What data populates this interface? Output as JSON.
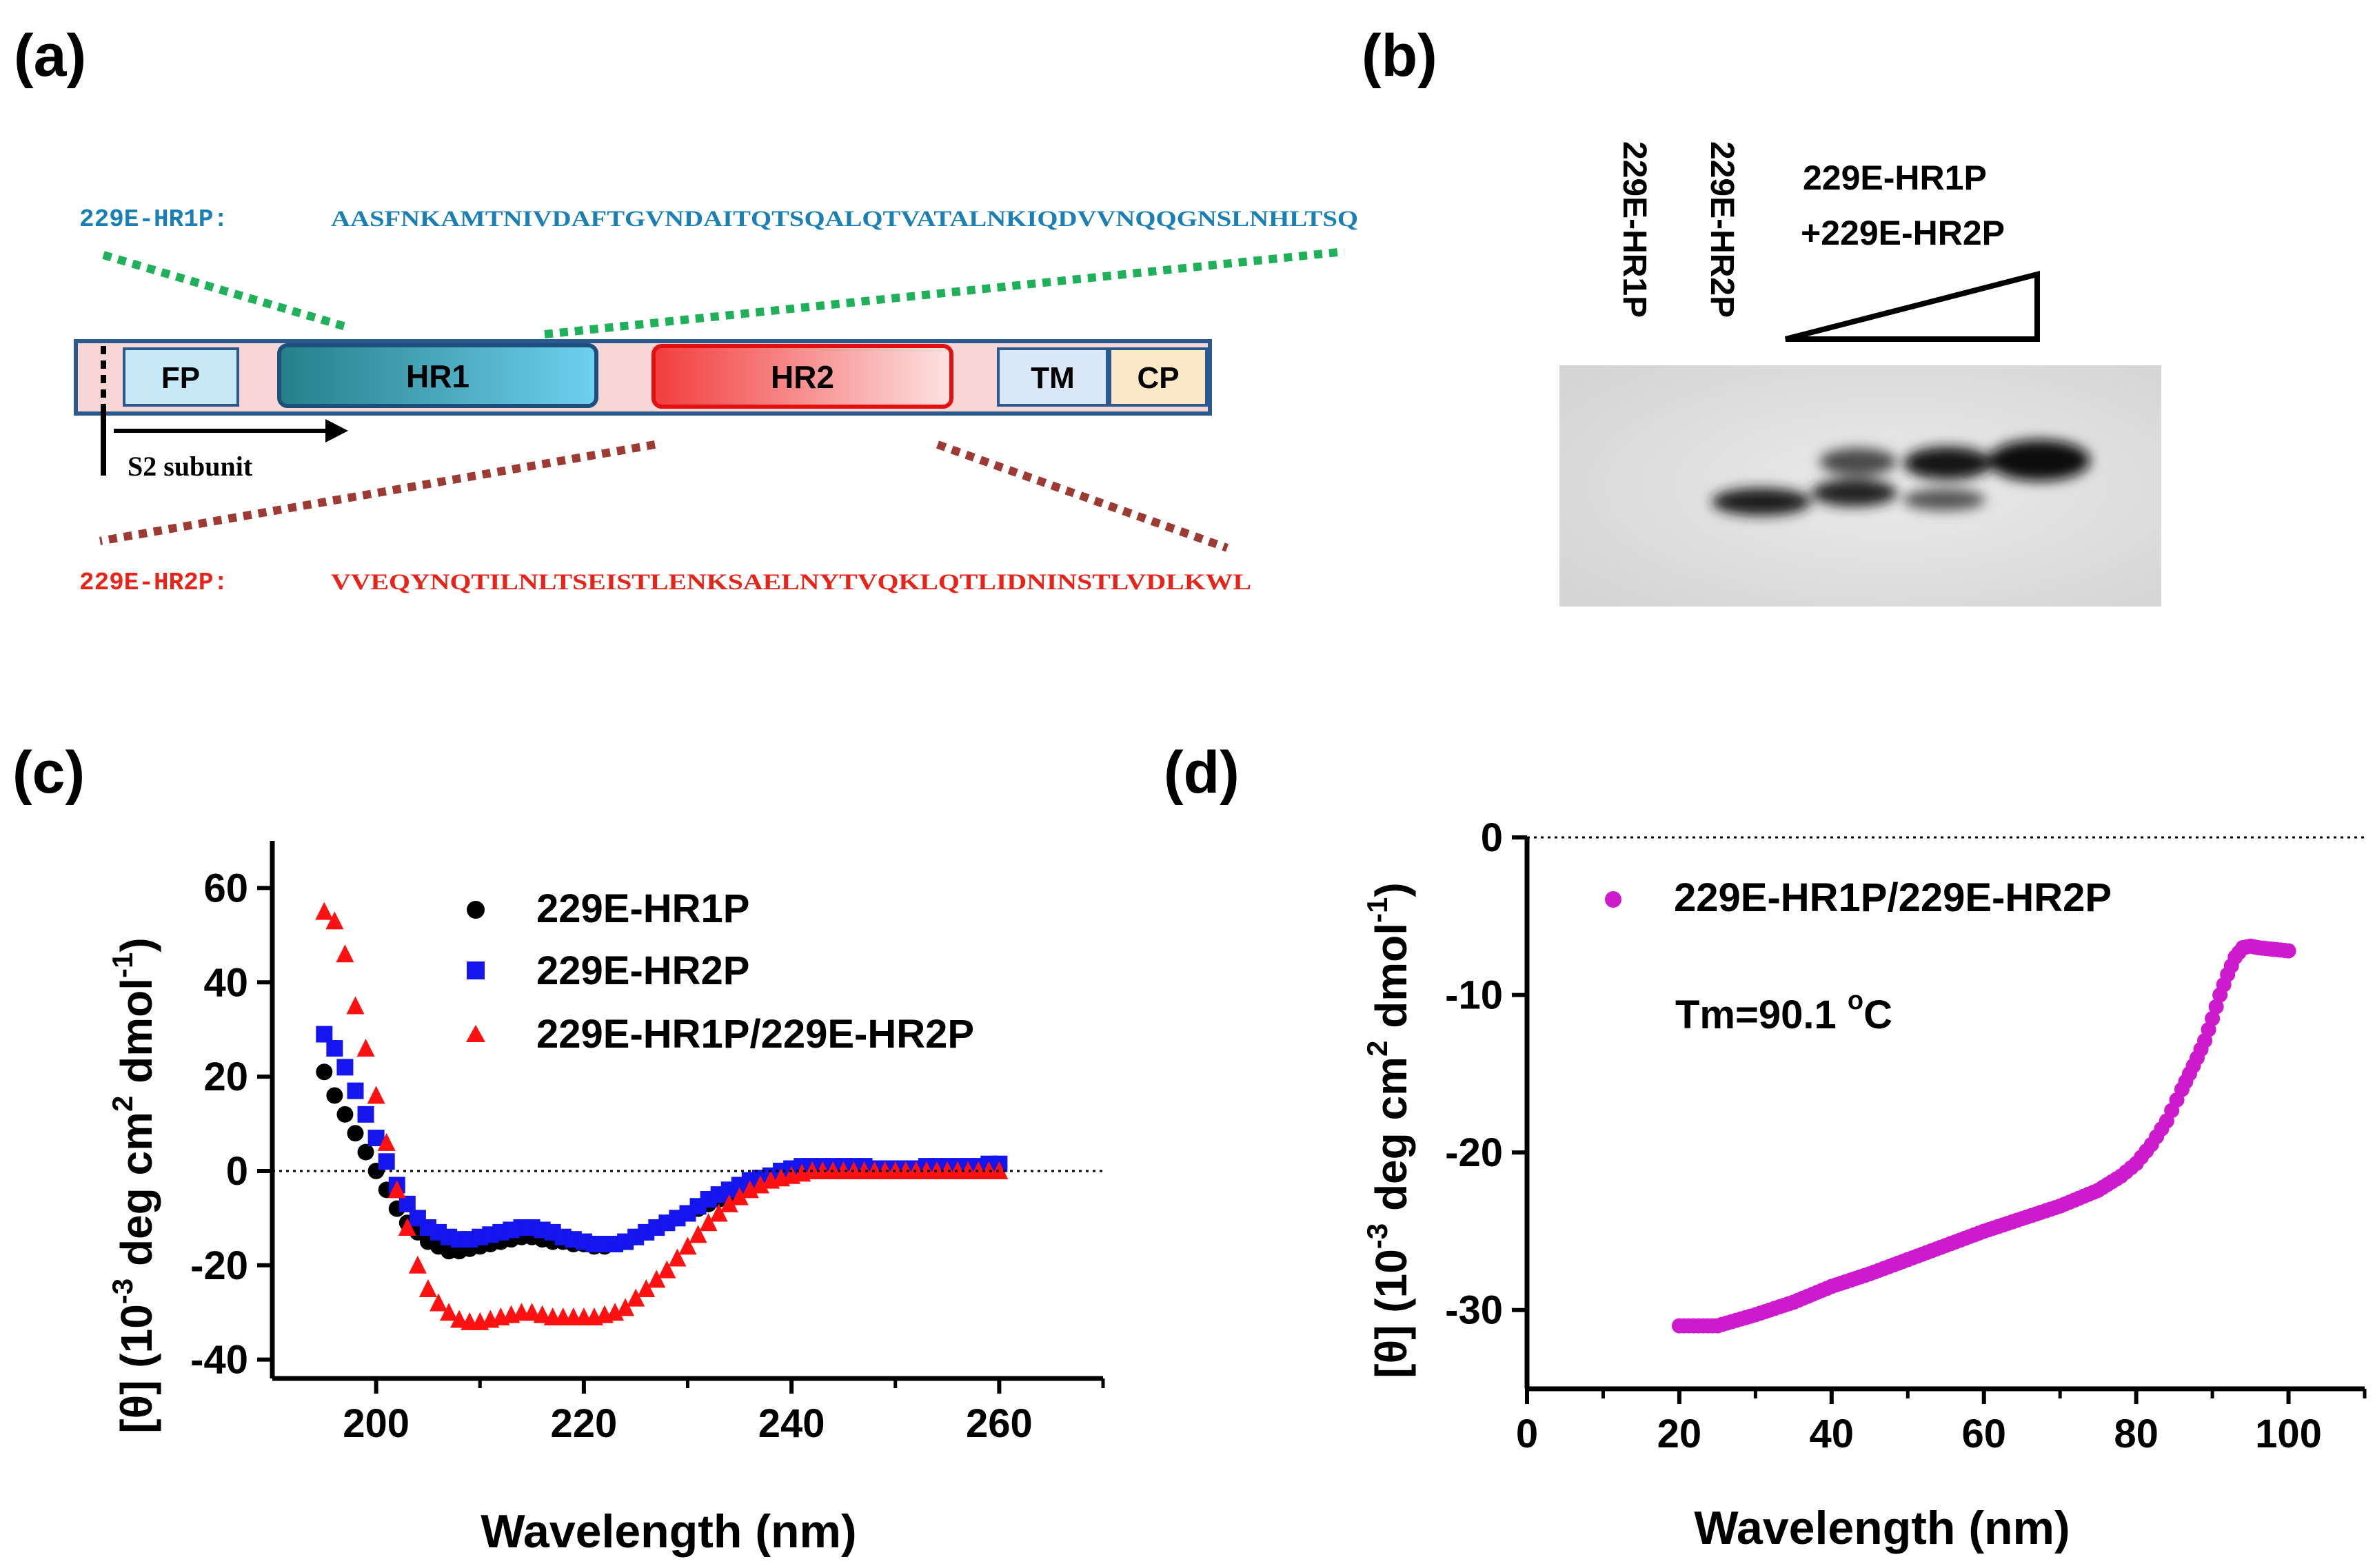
{
  "panels": {
    "a": {
      "label": "(a)",
      "hr1_seq_label": "229E-HR1P:",
      "hr1_seq": "AASFNKAMTNIVDAFTGVNDAITQTSQALQTVATALNKIQDVVNQQGNSLNHLTSQ",
      "hr2_seq_label": "229E-HR2P:",
      "hr2_seq": "VVEQYNQTILNLTSEISTLENKSAELNYTVQKLQTLIDNINSTLVDLKWL",
      "domains": {
        "fp": "FP",
        "hr1": "HR1",
        "hr2": "HR2",
        "tm": "TM",
        "cp": "CP"
      },
      "s2_label": "S2 subunit",
      "colors": {
        "hr1": "#1a7fb5",
        "hr2": "#e8231a",
        "hr1_link": "#1fb05a",
        "hr2_link": "#9c3a33"
      }
    },
    "b": {
      "label": "(b)",
      "lane1": "229E-HR1P",
      "lane2": "229E-HR2P",
      "mix_line1": "229E-HR1P",
      "mix_line2": "+229E-HR2P"
    },
    "c": {
      "label": "(c)"
    },
    "d": {
      "label": "(d)"
    }
  },
  "chart_data": [
    {
      "type": "scatter",
      "panel": "c",
      "xlabel": "Wavelength (nm)",
      "ylabel_prefix": "[θ] (10",
      "ylabel_exp1": "-3",
      "ylabel_mid": " deg cm",
      "ylabel_exp2": "2",
      "ylabel_mid2": " dmol",
      "ylabel_exp3": "-1",
      "ylabel_suffix": ")",
      "xlim": [
        190,
        270
      ],
      "ylim": [
        -44,
        70
      ],
      "xticks": [
        200,
        220,
        240,
        260
      ],
      "yticks": [
        60,
        40,
        20,
        0,
        -20,
        -40
      ],
      "zero_line": true,
      "series": [
        {
          "name": "229E-HR1P",
          "marker": "circle",
          "color": "#000000",
          "x": [
            195,
            196,
            197,
            198,
            199,
            200,
            201,
            202,
            203,
            204,
            205,
            206,
            207,
            208,
            209,
            210,
            211,
            212,
            213,
            214,
            215,
            216,
            217,
            218,
            219,
            220,
            221,
            222,
            223,
            224,
            225,
            226,
            227,
            228,
            229,
            230,
            231,
            232,
            233,
            234,
            235,
            236,
            237,
            238,
            239,
            240,
            241,
            242,
            243,
            244,
            245,
            246,
            247,
            248,
            249,
            250,
            251,
            252,
            253,
            254,
            255,
            256,
            257,
            258,
            259,
            260
          ],
          "y": [
            21,
            16,
            12,
            8,
            4,
            0,
            -4,
            -8,
            -11,
            -13,
            -15,
            -16,
            -17,
            -17,
            -16.5,
            -16,
            -15.5,
            -15,
            -14.5,
            -14,
            -14,
            -14.5,
            -15,
            -15,
            -15.5,
            -15.5,
            -16,
            -16,
            -15.5,
            -15,
            -14,
            -13,
            -12,
            -11,
            -10,
            -9,
            -8,
            -7,
            -6,
            -5,
            -4,
            -3,
            -2,
            -1.5,
            -1,
            -0.5,
            0,
            0,
            0,
            0,
            0,
            0,
            0,
            0,
            0,
            0,
            0,
            0,
            0,
            0,
            0,
            0,
            0.5,
            0.5,
            0.5,
            1
          ]
        },
        {
          "name": "229E-HR2P",
          "marker": "square",
          "color": "#1515ee",
          "x": [
            195,
            196,
            197,
            198,
            199,
            200,
            201,
            202,
            203,
            204,
            205,
            206,
            207,
            208,
            209,
            210,
            211,
            212,
            213,
            214,
            215,
            216,
            217,
            218,
            219,
            220,
            221,
            222,
            223,
            224,
            225,
            226,
            227,
            228,
            229,
            230,
            231,
            232,
            233,
            234,
            235,
            236,
            237,
            238,
            239,
            240,
            241,
            242,
            243,
            244,
            245,
            246,
            247,
            248,
            249,
            250,
            251,
            252,
            253,
            254,
            255,
            256,
            257,
            258,
            259,
            260
          ],
          "y": [
            29,
            26,
            22,
            17,
            12,
            7,
            2,
            -3,
            -7,
            -10,
            -12,
            -13,
            -14,
            -14.5,
            -14.5,
            -14,
            -13.5,
            -13,
            -12.5,
            -12,
            -12,
            -12.5,
            -13,
            -14,
            -14.5,
            -15,
            -15.5,
            -15.5,
            -15.5,
            -15,
            -14,
            -13,
            -12,
            -11,
            -10,
            -9,
            -7.5,
            -6,
            -5,
            -4,
            -3,
            -2,
            -1.5,
            -1,
            0,
            0.5,
            1,
            1,
            1,
            1,
            1,
            1,
            1,
            0.5,
            0.5,
            0.5,
            0.5,
            0.5,
            1,
            1,
            1,
            1,
            1,
            1,
            1.5,
            1.5
          ]
        },
        {
          "name": "229E-HR1P/229E-HR2P",
          "marker": "triangle",
          "color": "#ff1111",
          "x": [
            195,
            196,
            197,
            198,
            199,
            200,
            201,
            202,
            203,
            204,
            205,
            206,
            207,
            208,
            209,
            210,
            211,
            212,
            213,
            214,
            215,
            216,
            217,
            218,
            219,
            220,
            221,
            222,
            223,
            224,
            225,
            226,
            227,
            228,
            229,
            230,
            231,
            232,
            233,
            234,
            235,
            236,
            237,
            238,
            239,
            240,
            241,
            242,
            243,
            244,
            245,
            246,
            247,
            248,
            249,
            250,
            251,
            252,
            253,
            254,
            255,
            256,
            257,
            258,
            259,
            260
          ],
          "y": [
            55,
            53,
            46,
            35,
            26,
            16,
            6,
            -4,
            -12,
            -20,
            -25,
            -28,
            -30,
            -31.5,
            -32,
            -32,
            -31.5,
            -31,
            -30.5,
            -30,
            -30,
            -30.5,
            -31,
            -31,
            -31,
            -31,
            -31,
            -30.5,
            -30,
            -29,
            -27,
            -25,
            -23,
            -21,
            -18.5,
            -16,
            -13.5,
            -11,
            -9,
            -7,
            -5.5,
            -4,
            -3,
            -2,
            -1.5,
            -1,
            -0.5,
            0,
            0,
            0,
            0,
            0,
            0,
            0,
            0,
            0,
            0,
            0,
            0,
            0,
            0,
            0,
            0,
            0,
            0,
            0
          ]
        }
      ]
    },
    {
      "type": "scatter",
      "panel": "d",
      "xlabel": "Wavelength (nm)",
      "ylabel_prefix": "[θ] (10",
      "ylabel_exp1": "-3",
      "ylabel_mid": " deg cm",
      "ylabel_exp2": "2",
      "ylabel_mid2": " dmol",
      "ylabel_exp3": "-1",
      "ylabel_suffix": ")",
      "xlim": [
        0,
        110
      ],
      "ylim": [
        -35,
        0
      ],
      "xticks": [
        0,
        20,
        40,
        60,
        80,
        100
      ],
      "yticks": [
        0,
        -10,
        -20,
        -30
      ],
      "zero_line": true,
      "annotation_prefix": "Tm=90.1 ",
      "annotation_deg": "o",
      "annotation_unit": "C",
      "series": [
        {
          "name": "229E-HR1P/229E-HR2P",
          "marker": "circle",
          "color": "#cc1acc",
          "x": [
            20,
            25,
            30,
            35,
            40,
            45,
            50,
            55,
            60,
            65,
            70,
            75,
            78,
            80,
            82,
            84,
            86,
            87,
            88,
            89,
            90,
            91,
            92,
            93,
            94,
            95,
            96,
            97,
            98,
            99,
            100
          ],
          "y": [
            -31,
            -31,
            -30.3,
            -29.5,
            -28.5,
            -27.7,
            -26.8,
            -25.9,
            -25,
            -24.2,
            -23.4,
            -22.4,
            -21.5,
            -20.7,
            -19.5,
            -18,
            -16,
            -15,
            -14,
            -12.9,
            -11.5,
            -10,
            -8.7,
            -7.6,
            -7.0,
            -6.9,
            -7.0,
            -7.05,
            -7.1,
            -7.15,
            -7.2
          ]
        }
      ]
    }
  ]
}
